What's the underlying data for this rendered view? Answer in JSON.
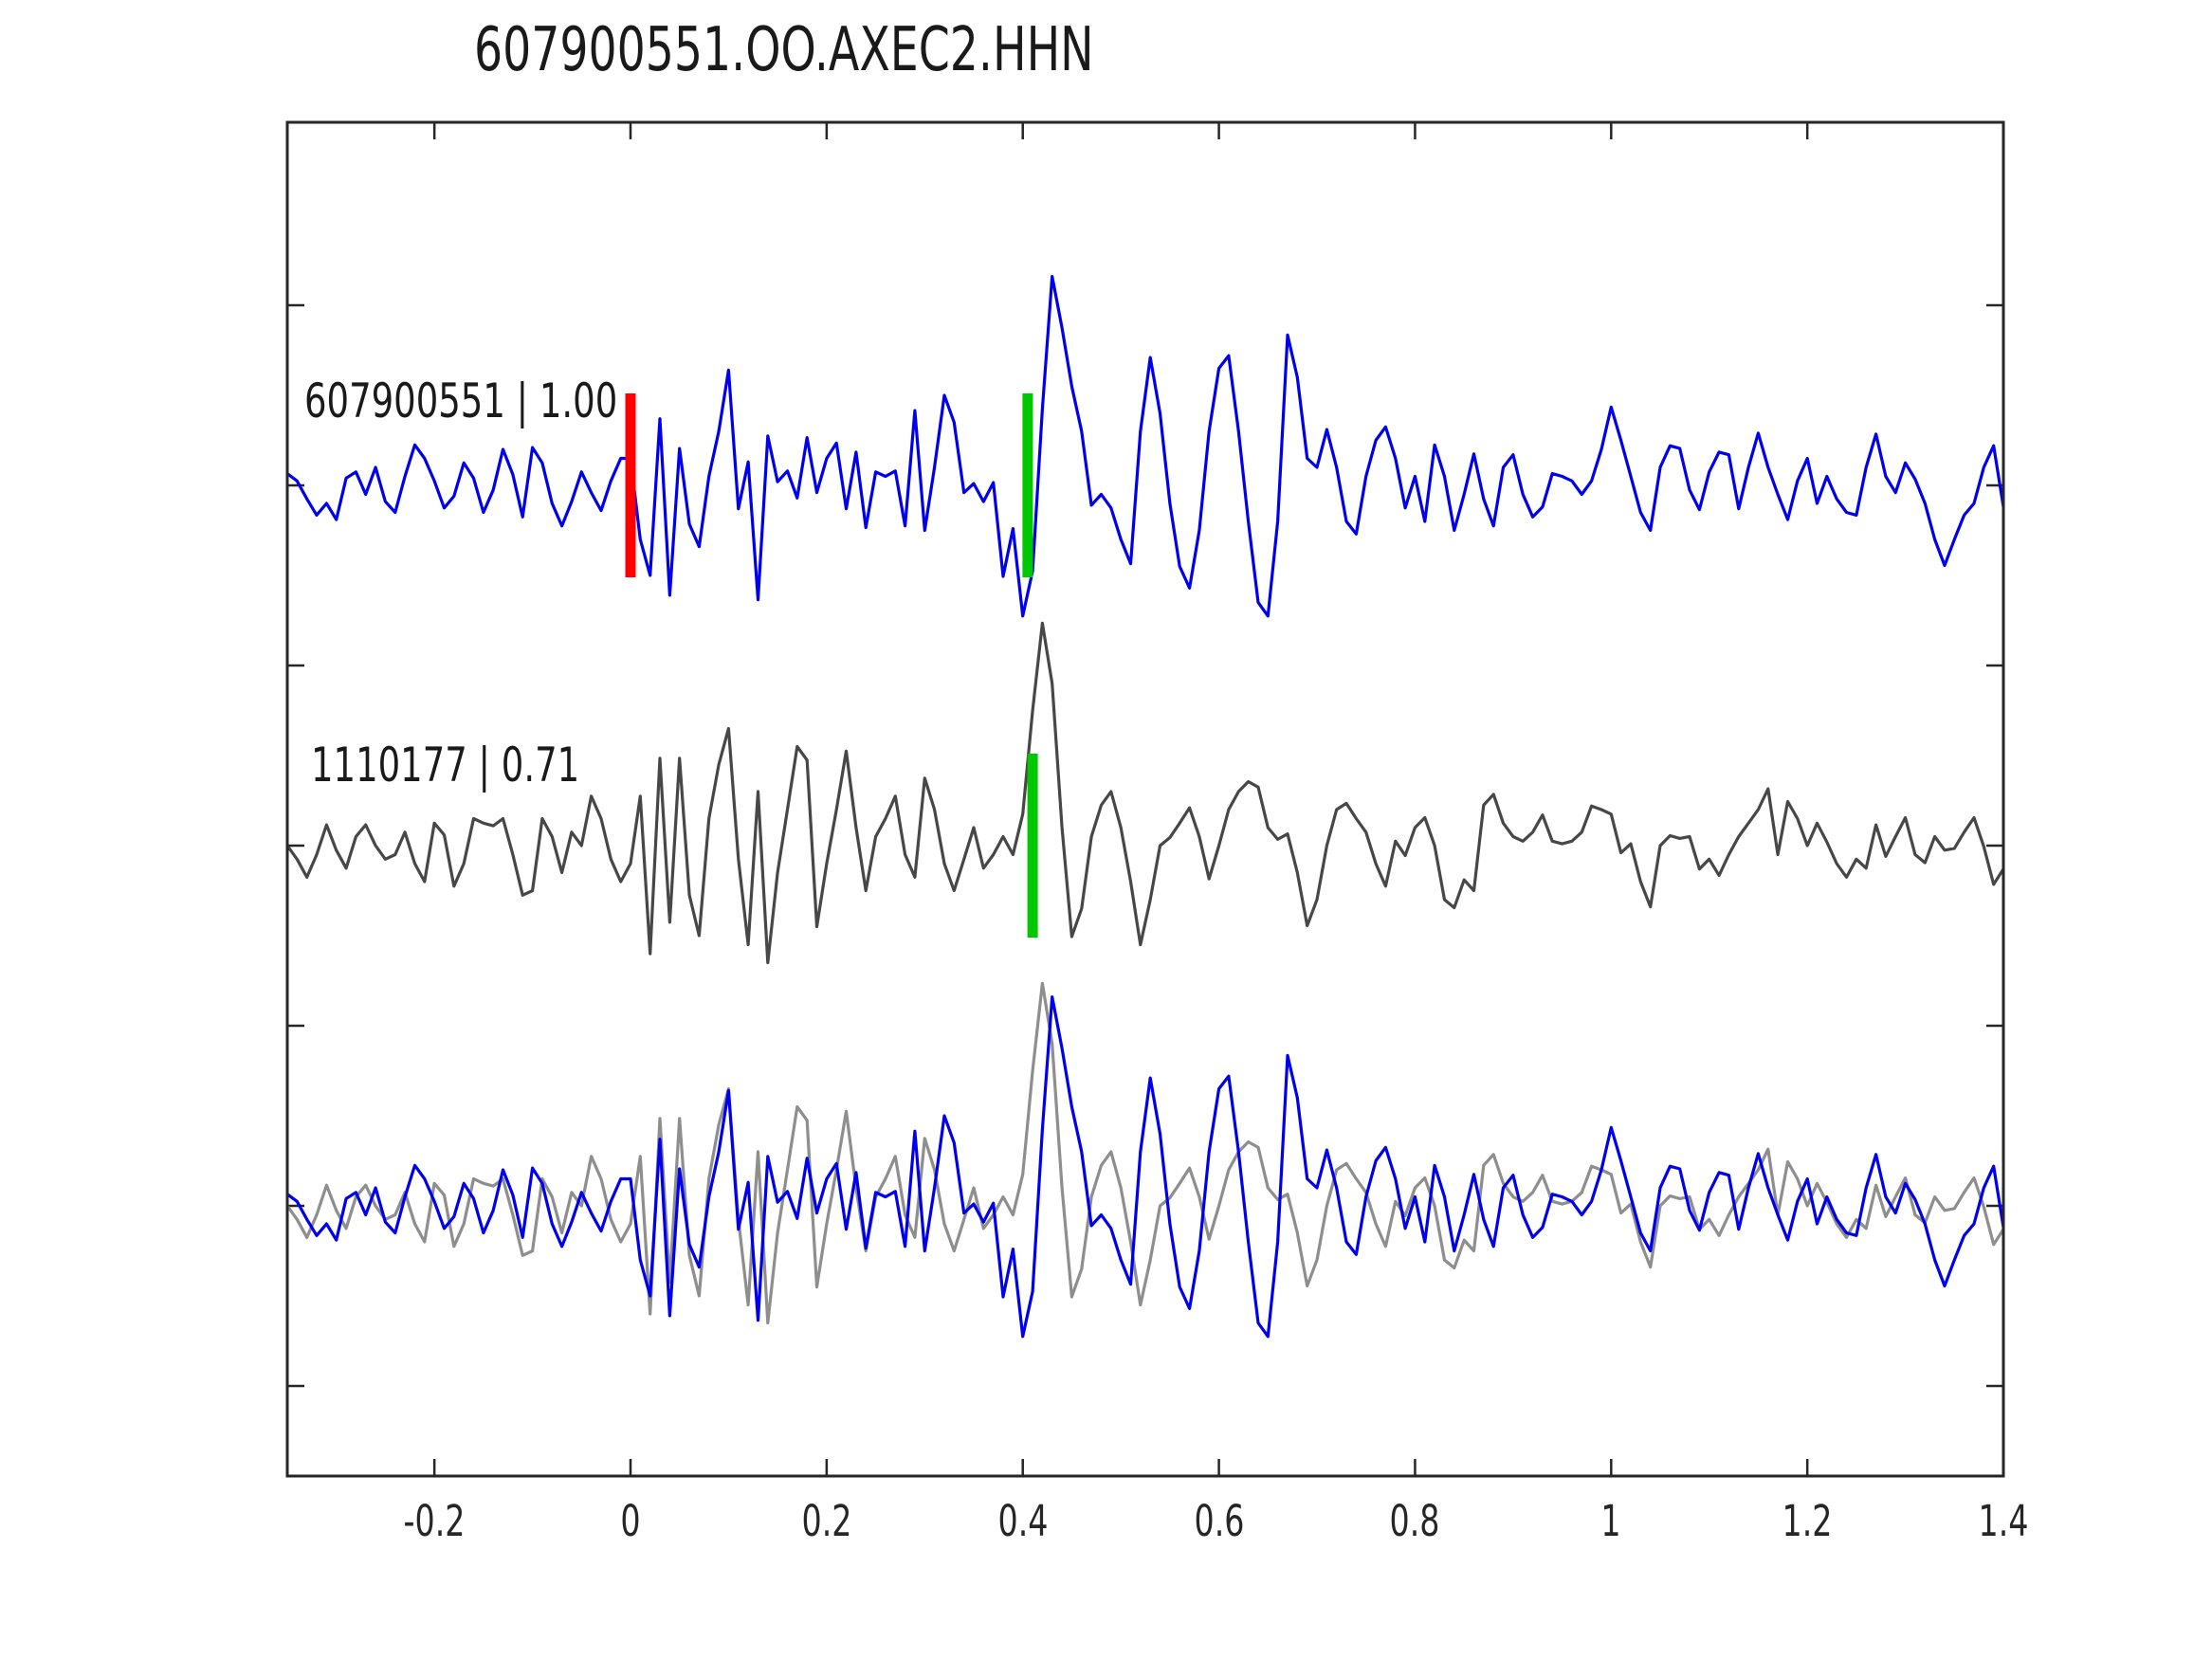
{
  "chart_data": {
    "type": "line",
    "title": "607900551.OO.AXEC2.HHN",
    "xlim": [
      -0.35,
      1.4
    ],
    "x_start": -0.35,
    "x_step": 0.01,
    "xticks": [
      -0.2,
      0,
      0.2,
      0.4,
      0.6,
      0.8,
      1,
      1.2,
      1.4
    ],
    "xtick_labels": [
      "-0.2",
      "0",
      "0.2",
      "0.4",
      "0.6",
      "0.8",
      "1",
      "1.2",
      "1.4"
    ],
    "grid": false,
    "legend": "none",
    "colors": {
      "template_trace": "#0000ee",
      "detection_trace": "#474747",
      "overlay_gray_trace": "#8e8e8e",
      "pick_red": "#ff0000",
      "pick_green": "#00c800",
      "axis": "#262626"
    },
    "rows": [
      {
        "name": "template",
        "label": "607900551 | 1.00",
        "id": "607900551",
        "correlation": "1.00",
        "series": "a",
        "color": "#0000ee",
        "markers": [
          {
            "x": 0.0,
            "color": "#ff0000",
            "name": "pick-marker-red"
          },
          {
            "x": 0.405,
            "color": "#00c800",
            "name": "pick-marker-green"
          }
        ]
      },
      {
        "name": "detection",
        "label": "1110177 | 0.71",
        "id": "1110177",
        "correlation": "0.71",
        "series": "b",
        "color": "#474747",
        "markers": [
          {
            "x": 0.41,
            "color": "#00c800",
            "name": "pick-marker-green"
          }
        ]
      },
      {
        "name": "overlay",
        "label": "",
        "series_list": [
          "b",
          "a"
        ],
        "colors_list": [
          "#8e8e8e",
          "#0000ee"
        ],
        "markers": []
      }
    ],
    "series": {
      "a": [
        0.13,
        0.05,
        -0.15,
        -0.33,
        -0.2,
        -0.38,
        0.08,
        0.15,
        -0.1,
        0.2,
        -0.18,
        -0.3,
        0.1,
        0.45,
        0.3,
        0.05,
        -0.25,
        -0.12,
        0.25,
        0.08,
        -0.3,
        -0.05,
        0.4,
        0.12,
        -0.35,
        0.42,
        0.25,
        -0.2,
        -0.45,
        -0.18,
        0.15,
        -0.08,
        -0.28,
        0.05,
        0.3,
        0.3,
        -0.6,
        -1.0,
        0.74,
        -1.22,
        0.41,
        -0.43,
        -0.68,
        0.1,
        0.6,
        1.28,
        -0.26,
        0.26,
        -1.27,
        0.55,
        0.04,
        0.16,
        -0.14,
        0.53,
        -0.08,
        0.3,
        0.47,
        -0.26,
        0.37,
        -0.47,
        0.15,
        0.1,
        0.16,
        -0.45,
        0.83,
        -0.5,
        0.2,
        1.0,
        0.7,
        -0.08,
        0.02,
        -0.18,
        0.03,
        -1.01,
        -0.48,
        -1.45,
        -0.95,
        0.85,
        2.32,
        1.75,
        1.1,
        0.6,
        -0.22,
        -0.1,
        -0.25,
        -0.6,
        -0.87,
        0.6,
        1.42,
        0.8,
        -0.2,
        -0.9,
        -1.14,
        -0.5,
        0.6,
        1.3,
        1.44,
        0.6,
        -0.4,
        -1.3,
        -1.45,
        -0.4,
        1.67,
        1.2,
        0.3,
        0.2,
        0.62,
        0.2,
        -0.4,
        -0.54,
        0.1,
        0.5,
        0.65,
        0.3,
        -0.25,
        0.1,
        -0.4,
        0.45,
        0.1,
        -0.5,
        -0.1,
        0.35,
        -0.15,
        -0.45,
        0.2,
        0.34,
        -0.1,
        -0.35,
        -0.24,
        0.13,
        0.1,
        0.05,
        -0.1,
        0.05,
        0.4,
        0.87,
        0.5,
        0.1,
        -0.3,
        -0.5,
        0.2,
        0.44,
        0.41,
        -0.05,
        -0.27,
        0.15,
        0.37,
        0.34,
        -0.26,
        0.2,
        0.58,
        0.2,
        -0.1,
        -0.38,
        0.05,
        0.3,
        -0.2,
        0.1,
        -0.15,
        -0.3,
        -0.33,
        0.2,
        0.57,
        0.1,
        -0.08,
        0.25,
        0.07,
        -0.2,
        -0.6,
        -0.89,
        -0.6,
        -0.33,
        -0.2,
        0.2,
        0.44,
        -0.24
      ],
      "b": [
        0.0,
        -0.15,
        -0.35,
        -0.1,
        0.23,
        -0.05,
        -0.25,
        0.1,
        0.23,
        0.0,
        -0.15,
        -0.1,
        0.15,
        -0.2,
        -0.4,
        0.25,
        0.12,
        -0.45,
        -0.2,
        0.3,
        0.25,
        0.22,
        0.3,
        -0.1,
        -0.55,
        -0.5,
        0.3,
        0.1,
        -0.3,
        0.15,
        0.0,
        0.55,
        0.3,
        -0.15,
        -0.4,
        -0.2,
        0.55,
        -1.2,
        0.97,
        -0.85,
        0.97,
        -0.55,
        -1.0,
        0.3,
        0.9,
        1.3,
        -0.15,
        -1.1,
        0.6,
        -1.3,
        -0.3,
        0.4,
        1.1,
        0.95,
        -0.9,
        -0.2,
        0.4,
        1.05,
        0.2,
        -0.5,
        0.1,
        0.3,
        0.55,
        -0.1,
        -0.35,
        0.75,
        0.4,
        -0.2,
        -0.5,
        -0.15,
        0.2,
        -0.25,
        -0.1,
        0.1,
        -0.1,
        0.35,
        1.5,
        2.47,
        1.8,
        0.2,
        -1.01,
        -0.7,
        0.1,
        0.45,
        0.6,
        0.2,
        -0.4,
        -1.1,
        -0.6,
        0.0,
        0.09,
        0.25,
        0.42,
        0.1,
        -0.37,
        0.0,
        0.4,
        0.6,
        0.71,
        0.65,
        0.2,
        0.07,
        0.13,
        -0.3,
        -0.89,
        -0.6,
        0.0,
        0.4,
        0.47,
        0.3,
        0.15,
        -0.2,
        -0.45,
        0.05,
        -0.11,
        0.2,
        0.31,
        0.0,
        -0.6,
        -0.69,
        -0.38,
        -0.5,
        0.45,
        0.57,
        0.25,
        0.1,
        0.05,
        0.15,
        0.34,
        0.05,
        0.02,
        0.05,
        0.15,
        0.44,
        0.4,
        0.35,
        -0.08,
        0.02,
        -0.4,
        -0.68,
        0.0,
        0.11,
        0.08,
        0.1,
        -0.26,
        -0.15,
        -0.33,
        -0.1,
        0.1,
        0.25,
        0.4,
        0.63,
        -0.1,
        0.49,
        0.3,
        0.0,
        0.25,
        0.04,
        -0.2,
        -0.35,
        -0.15,
        -0.25,
        0.23,
        -0.12,
        0.1,
        0.31,
        -0.1,
        -0.19,
        0.1,
        -0.05,
        -0.03,
        0.15,
        0.31,
        -0.01,
        -0.43,
        -0.26
      ]
    }
  }
}
